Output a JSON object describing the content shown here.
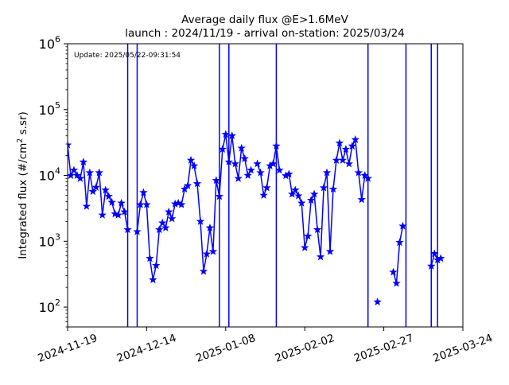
{
  "chart_data": {
    "type": "line",
    "title": "Average daily flux @E>1.6MeV",
    "subtitle": "launch : 2024/11/19 - arrival on-station: 2025/03/24",
    "annotation": "Update: 2025/05/22-09:31:54",
    "xlabel": "",
    "ylabel_parts": {
      "pre": "Integrated flux (#/cm",
      "sup": "2",
      "post": " s.sr)"
    },
    "yscale": "log",
    "ylim": [
      50,
      1000000
    ],
    "xlim": [
      "2024-11-19",
      "2025-03-24"
    ],
    "grid": false,
    "marker": "star",
    "line_color": "#0000ff",
    "x_ticks": [
      "2024-11-19",
      "2024-12-14",
      "2025-01-08",
      "2025-02-02",
      "2025-02-27",
      "2025-03-24"
    ],
    "y_ticks": [
      {
        "value": 100,
        "base": "10",
        "exp": "2"
      },
      {
        "value": 1000,
        "base": "10",
        "exp": "3"
      },
      {
        "value": 10000,
        "base": "10",
        "exp": "4"
      },
      {
        "value": 100000,
        "base": "10",
        "exp": "5"
      },
      {
        "value": 1000000,
        "base": "10",
        "exp": "6"
      }
    ],
    "series": [
      {
        "x": [
          "2024-11-19",
          "2024-11-20",
          "2024-11-21",
          "2024-11-22",
          "2024-11-23",
          "2024-11-24",
          "2024-11-25",
          "2024-11-26",
          "2024-11-27",
          "2024-11-28",
          "2024-11-29",
          "2024-11-30",
          "2024-12-01",
          "2024-12-02",
          "2024-12-03",
          "2024-12-04",
          "2024-12-05",
          "2024-12-06",
          "2024-12-07",
          "2024-12-08",
          "2024-12-09",
          "2024-12-10",
          "2024-12-11",
          "2024-12-12",
          "2024-12-13",
          "2024-12-14",
          "2024-12-15",
          "2024-12-16",
          "2024-12-17",
          "2024-12-18",
          "2024-12-19",
          "2024-12-20",
          "2024-12-21",
          "2024-12-22",
          "2024-12-23",
          "2024-12-24",
          "2024-12-25",
          "2024-12-26",
          "2024-12-27",
          "2024-12-28",
          "2024-12-29",
          "2024-12-30",
          "2024-12-31",
          "2025-01-01",
          "2025-01-02",
          "2025-01-03",
          "2025-01-04",
          "2025-01-05",
          "2025-01-06",
          "2025-01-07",
          "2025-01-08",
          "2025-01-09",
          "2025-01-10",
          "2025-01-11",
          "2025-01-12",
          "2025-01-13",
          "2025-01-14",
          "2025-01-15",
          "2025-01-16",
          "2025-01-17",
          "2025-01-18",
          "2025-01-19",
          "2025-01-20",
          "2025-01-21",
          "2025-01-22",
          "2025-01-23",
          "2025-01-24",
          "2025-01-25",
          "2025-01-26",
          "2025-01-27",
          "2025-01-28",
          "2025-01-29",
          "2025-01-30",
          "2025-01-31",
          "2025-02-01",
          "2025-02-02",
          "2025-02-03",
          "2025-02-04",
          "2025-02-05",
          "2025-02-06",
          "2025-02-07",
          "2025-02-08",
          "2025-02-09",
          "2025-02-10",
          "2025-02-11",
          "2025-02-12",
          "2025-02-13",
          "2025-02-14",
          "2025-02-15",
          "2025-02-16",
          "2025-02-17",
          "2025-02-18",
          "2025-02-19",
          "2025-02-20",
          "2025-02-21",
          "2025-02-22",
          "2025-02-23",
          "2025-02-24",
          "2025-02-25",
          "2025-02-26",
          "2025-02-27",
          "2025-02-28",
          "2025-03-01",
          "2025-03-02",
          "2025-03-03",
          "2025-03-04",
          "2025-03-05",
          "2025-03-06",
          "2025-03-07",
          "2025-03-08",
          "2025-03-09",
          "2025-03-10",
          "2025-03-11",
          "2025-03-12",
          "2025-03-13",
          "2025-03-14",
          "2025-03-15",
          "2025-03-16",
          "2025-03-17"
        ],
        "y": [
          29000,
          10000,
          12000,
          10000,
          9000,
          16000,
          3400,
          11000,
          5700,
          6600,
          11000,
          2500,
          6000,
          4800,
          3900,
          2600,
          2500,
          3800,
          2800,
          1500,
          null,
          null,
          1400,
          3600,
          5500,
          3600,
          550,
          260,
          430,
          1500,
          1900,
          1600,
          2800,
          2200,
          3700,
          3800,
          3600,
          6200,
          7000,
          17000,
          14000,
          7500,
          2000,
          350,
          640,
          1600,
          700,
          8400,
          4800,
          25000,
          42000,
          16000,
          40000,
          15000,
          9000,
          26000,
          18000,
          10000,
          12000,
          null,
          15000,
          11000,
          5000,
          6500,
          14000,
          15000,
          28000,
          12000,
          null,
          9900,
          10500,
          5200,
          6000,
          4900,
          3800,
          800,
          1200,
          4200,
          5200,
          1500,
          580,
          6500,
          11000,
          700,
          6200,
          17000,
          31000,
          17000,
          25000,
          15000,
          28000,
          35000,
          11000,
          4300,
          10000,
          9000,
          null,
          null,
          120,
          null,
          null,
          null,
          null,
          340,
          230,
          960,
          1700,
          null,
          null,
          null,
          null,
          null,
          null,
          null,
          null,
          420,
          650,
          520,
          550
        ]
      }
    ],
    "drops": [
      "2024-12-08",
      "2024-12-11",
      "2025-01-06",
      "2025-01-09",
      "2025-01-24",
      "2025-02-22",
      "2025-03-06",
      "2025-03-14",
      "2025-03-16"
    ]
  }
}
